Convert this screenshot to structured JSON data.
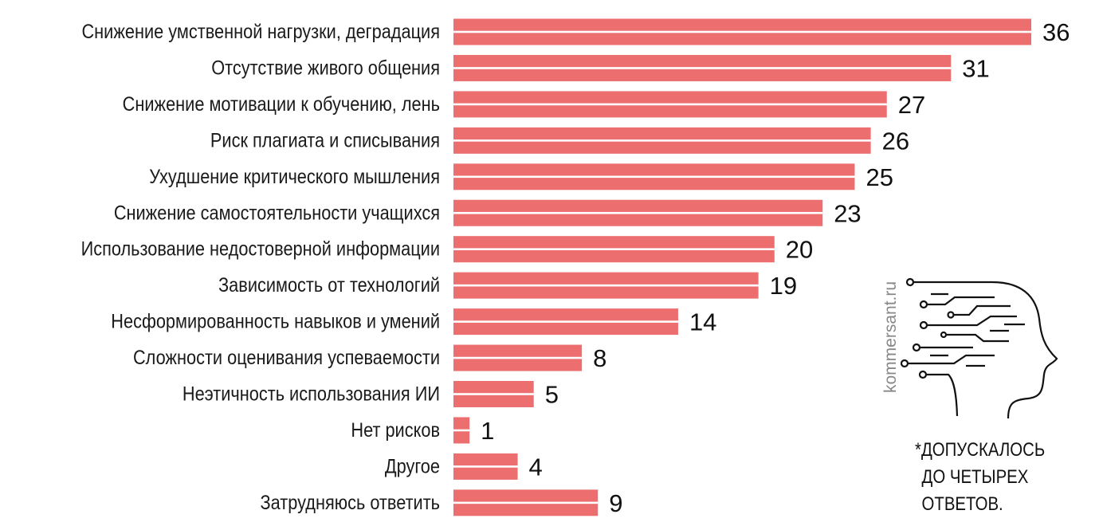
{
  "chart_data": {
    "type": "bar",
    "orientation": "horizontal",
    "categories": [
      "Снижение умственной нагрузки, деградация",
      "Отсутствие живого общения",
      "Снижение мотивации к обучению, лень",
      "Риск плагиата и списывания",
      "Ухудшение критического мышления",
      "Снижение самостоятельности учащихся",
      "Использование недостоверной информации",
      "Зависимость от технологий",
      "Несформированность навыков и умений",
      "Сложности оценивания успеваемости",
      "Неэтичность использования ИИ",
      "Нет рисков",
      "Другое",
      "Затрудняюсь ответить"
    ],
    "values": [
      36,
      31,
      27,
      26,
      25,
      23,
      20,
      19,
      14,
      8,
      5,
      1,
      4,
      9
    ],
    "xlim": [
      0,
      36
    ],
    "bar_color": "#ec6e6e",
    "grid": false
  },
  "source": "kommersant.ru",
  "footnote": [
    "*ДОПУСКАЛОСЬ",
    "ДО ЧЕТЫРЕХ",
    "ОТВЕТОВ."
  ]
}
